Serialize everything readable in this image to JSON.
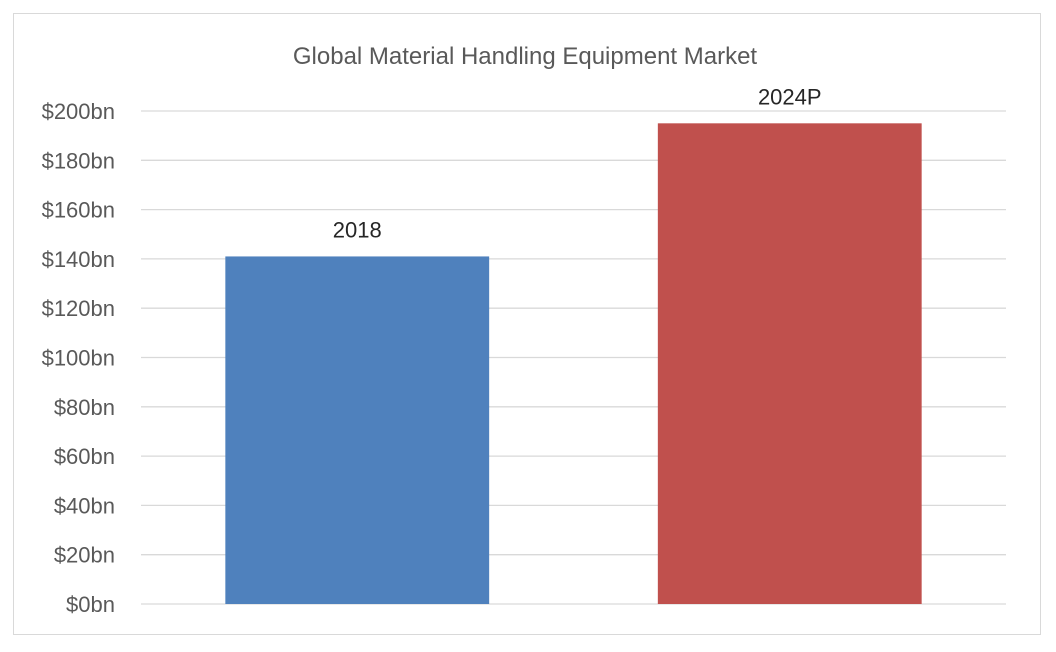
{
  "chart_data": {
    "type": "bar",
    "title": "Global Material Handling Equipment Market",
    "categories": [
      "2018",
      "2024P"
    ],
    "values": [
      141,
      195
    ],
    "data_labels": [
      "2018",
      "2024P"
    ],
    "colors": [
      "#4f81bd",
      "#c0504d"
    ],
    "ylim": [
      0,
      200
    ],
    "y_ticks": [
      0,
      20,
      40,
      60,
      80,
      100,
      120,
      140,
      160,
      180,
      200
    ],
    "y_tick_labels": [
      "$0bn",
      "$20bn",
      "$40bn",
      "$60bn",
      "$80bn",
      "$100bn",
      "$120bn",
      "$140bn",
      "$160bn",
      "$180bn",
      "$200bn"
    ],
    "grid": true,
    "legend": "none",
    "xlabel": "",
    "ylabel": ""
  }
}
